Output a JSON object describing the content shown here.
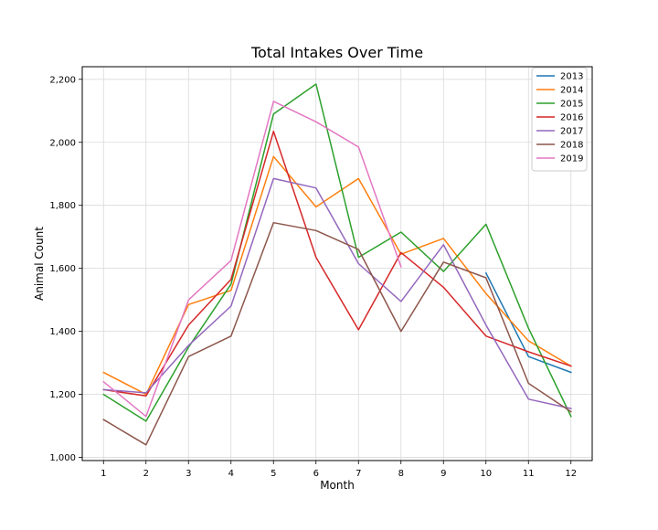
{
  "chart_data": {
    "type": "line",
    "title": "Total Intakes Over Time",
    "xlabel": "Month",
    "ylabel": "Animal Count",
    "xlim": [
      0.5,
      12.5
    ],
    "ylim": [
      990,
      2240
    ],
    "x_ticks": [
      1,
      2,
      3,
      4,
      5,
      6,
      7,
      8,
      9,
      10,
      11,
      12
    ],
    "y_ticks": [
      1000,
      1200,
      1400,
      1600,
      1800,
      2000,
      2200
    ],
    "y_tick_labels": [
      "1,000",
      "1,200",
      "1,400",
      "1,600",
      "1,800",
      "2,000",
      "2,200"
    ],
    "grid": true,
    "legend_position": "top-right",
    "series": [
      {
        "name": "2013",
        "color": "#1f77b4",
        "x": [
          10,
          11,
          12
        ],
        "values": [
          1585,
          1320,
          1270
        ]
      },
      {
        "name": "2014",
        "color": "#ff7f0e",
        "x": [
          1,
          2,
          3,
          4,
          5,
          6,
          7,
          8,
          9,
          10,
          11,
          12
        ],
        "values": [
          1270,
          1200,
          1485,
          1530,
          1955,
          1795,
          1885,
          1645,
          1695,
          1520,
          1370,
          1290
        ]
      },
      {
        "name": "2015",
        "color": "#2ca02c",
        "x": [
          1,
          2,
          3,
          4,
          5,
          6,
          7,
          8,
          9,
          10,
          11,
          12
        ],
        "values": [
          1200,
          1115,
          1350,
          1550,
          2090,
          2185,
          1635,
          1715,
          1590,
          1740,
          1410,
          1130
        ]
      },
      {
        "name": "2016",
        "color": "#d62728",
        "x": [
          1,
          2,
          3,
          4,
          5,
          6,
          7,
          8,
          9,
          10,
          11,
          12
        ],
        "values": [
          1215,
          1195,
          1420,
          1565,
          2035,
          1635,
          1405,
          1650,
          1540,
          1385,
          1335,
          1290
        ]
      },
      {
        "name": "2017",
        "color": "#9467bd",
        "x": [
          1,
          2,
          3,
          4,
          5,
          6,
          7,
          8,
          9,
          10,
          11,
          12
        ],
        "values": [
          1215,
          1205,
          1355,
          1480,
          1885,
          1855,
          1615,
          1495,
          1675,
          1420,
          1185,
          1155
        ]
      },
      {
        "name": "2018",
        "color": "#8c564b",
        "x": [
          1,
          2,
          3,
          4,
          5,
          6,
          7,
          8,
          9,
          10,
          11,
          12
        ],
        "values": [
          1120,
          1040,
          1320,
          1385,
          1745,
          1720,
          1660,
          1400,
          1620,
          1570,
          1235,
          1145
        ]
      },
      {
        "name": "2019",
        "color": "#e377c2",
        "x": [
          1,
          2,
          3,
          4,
          5,
          6,
          7,
          8
        ],
        "values": [
          1240,
          1130,
          1500,
          1625,
          2130,
          2065,
          1985,
          1605
        ]
      }
    ]
  }
}
